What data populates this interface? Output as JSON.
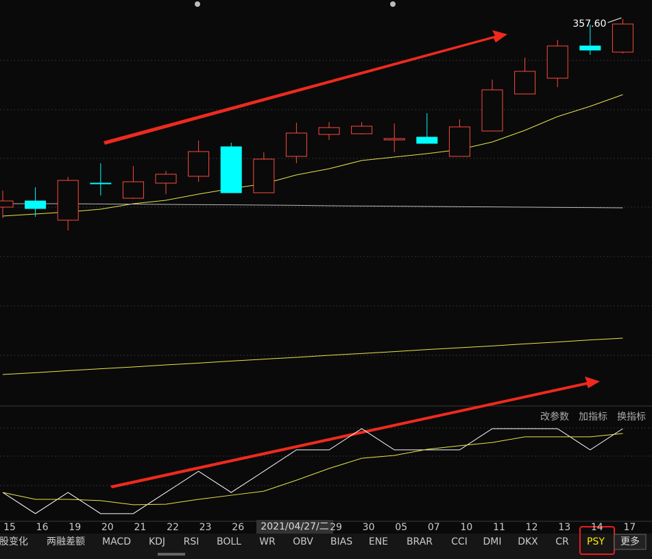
{
  "chart_data": [
    {
      "type": "candlestick",
      "categories": [
        "15",
        "16",
        "19",
        "20",
        "21",
        "22",
        "23",
        "26",
        null,
        null,
        "29",
        "30",
        "05",
        "07",
        "10",
        "11",
        "12",
        "13",
        "14",
        "17"
      ],
      "open": [
        275.4,
        278.1,
        269.7,
        285.9,
        279.3,
        285.9,
        288.9,
        301.8,
        281.7,
        297.6,
        307.2,
        307.5,
        304.8,
        306.0,
        297.6,
        308.7,
        324.9,
        331.8,
        345.9,
        343.2
      ],
      "high": [
        282.6,
        284.1,
        288.6,
        294.6,
        293.4,
        291.3,
        304.5,
        303.6,
        299.4,
        312.3,
        312.6,
        312.6,
        312.0,
        316.5,
        313.8,
        331.2,
        340.8,
        348.6,
        355.2,
        357.6
      ],
      "low": [
        270.6,
        271.2,
        265.2,
        280.5,
        279.0,
        281.1,
        286.5,
        281.7,
        281.7,
        294.6,
        304.8,
        307.2,
        299.4,
        303.3,
        297.6,
        308.7,
        324.9,
        327.9,
        342.0,
        342.6
      ],
      "close": [
        278.1,
        274.8,
        287.1,
        285.6,
        286.5,
        289.8,
        299.7,
        281.7,
        296.4,
        307.8,
        310.2,
        310.8,
        305.4,
        303.3,
        310.5,
        326.7,
        334.8,
        345.9,
        344.1,
        355.5
      ],
      "up_color": "#ff4a3d",
      "down_color": "#00ffff",
      "ylim": [
        189,
        366
      ],
      "max_label": {
        "value": 357.6,
        "label": "357.60"
      },
      "series": [
        {
          "color": "#e8e84a",
          "values": [
            271.5,
            272.4,
            273.3,
            274.5,
            276.9,
            278.4,
            281.1,
            283.5,
            285.6,
            289.5,
            292.2,
            295.8,
            297.3,
            298.8,
            300.6,
            303.9,
            309.0,
            315.0,
            319.5,
            324.6
          ]
        },
        {
          "color": "#bbbbbb",
          "values": [
            276.9,
            276.9,
            276.9,
            276.8,
            276.7,
            276.6,
            276.5,
            276.4,
            276.3,
            276.2,
            276.0,
            275.9,
            275.8,
            275.7,
            275.6,
            275.5,
            275.4,
            275.3,
            275.2,
            275.1
          ]
        },
        {
          "color": "#e8e84a",
          "values": [
            202.2,
            203.0,
            203.9,
            204.7,
            205.5,
            206.4,
            207.2,
            208.1,
            208.9,
            209.7,
            210.6,
            211.4,
            212.2,
            213.1,
            213.9,
            214.7,
            215.6,
            216.4,
            217.3,
            218.1
          ]
        }
      ]
    },
    {
      "type": "line",
      "ylim": [
        38.7,
        83.6
      ],
      "series": [
        {
          "color": "#ffffff",
          "values": [
            50.0,
            41.7,
            50.0,
            41.7,
            41.7,
            50.0,
            58.3,
            50.0,
            58.3,
            66.7,
            66.7,
            75.0,
            66.7,
            66.7,
            66.7,
            75.0,
            75.0,
            75.0,
            66.7,
            75.0
          ]
        },
        {
          "color": "#e8e84a",
          "values": [
            50.0,
            47.3,
            47.3,
            46.8,
            45.2,
            45.4,
            47.3,
            48.9,
            50.5,
            54.8,
            59.4,
            63.4,
            64.5,
            66.9,
            68.3,
            69.6,
            71.8,
            71.8,
            71.8,
            73.1
          ]
        }
      ]
    }
  ],
  "cursor_date": "2021/04/27/二",
  "toolbar": [
    "改参数",
    "加指标",
    "换指标"
  ],
  "tabs": {
    "items": [
      "股变化",
      "两融差额",
      "MACD",
      "KDJ",
      "RSI",
      "BOLL",
      "WR",
      "OBV",
      "BIAS",
      "ENE",
      "BRAR",
      "CCI",
      "DMI",
      "DKX",
      "CR",
      "PSY"
    ],
    "active": 15,
    "more": "更多"
  }
}
